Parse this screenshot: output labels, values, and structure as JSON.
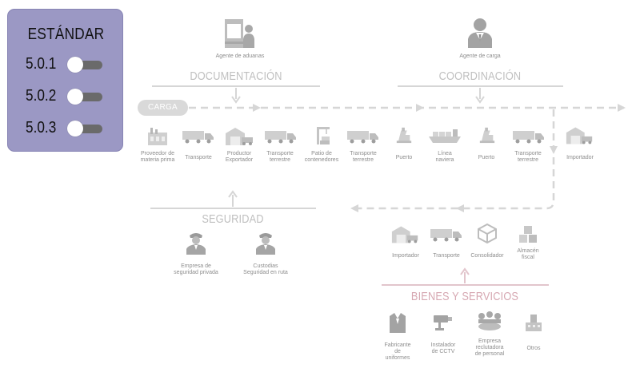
{
  "panel": {
    "title": "ESTÁNDAR",
    "items": [
      {
        "label": "5.0.1",
        "enabled": true
      },
      {
        "label": "5.0.2",
        "enabled": true
      },
      {
        "label": "5.0.3",
        "enabled": true
      }
    ]
  },
  "top_actors": {
    "customs_agent": "Agente de aduanas",
    "cargo_agent": "Agente de carga"
  },
  "sections": {
    "documentation": "DOCUMENTACIÓN",
    "coordination": "COORDINACIÓN",
    "security": "SEGURIDAD",
    "goods_services": "BIENES Y SERVICIOS"
  },
  "cargo_label": "CARGA",
  "chain_nodes": [
    {
      "label": "Proveedor de\nmateria prima",
      "icon": "factory-icon"
    },
    {
      "label": "Transporte",
      "icon": "truck-icon"
    },
    {
      "label": "Productor\nExportador",
      "icon": "warehouse-icon"
    },
    {
      "label": "Transporte\nterrestre",
      "icon": "truck-icon"
    },
    {
      "label": "Patio de\ncontenedores",
      "icon": "crane-icon"
    },
    {
      "label": "Transporte\nterrestre",
      "icon": "truck-icon"
    },
    {
      "label": "Puerto",
      "icon": "port-crane-icon"
    },
    {
      "label": "Línea\nnaviera",
      "icon": "ship-icon"
    },
    {
      "label": "Puerto",
      "icon": "port-crane-icon"
    },
    {
      "label": "Transporte\nterrestre",
      "icon": "truck-icon"
    },
    {
      "label": "Importador",
      "icon": "warehouse-icon"
    }
  ],
  "security_nodes": [
    {
      "label": "Empresa de\nseguridad privada",
      "icon": "guard-icon"
    },
    {
      "label": "Custodias\nSeguridad en ruta",
      "icon": "guard-icon"
    }
  ],
  "import_nodes": [
    {
      "label": "Importador",
      "icon": "warehouse-icon"
    },
    {
      "label": "Transporte",
      "icon": "truck-icon"
    },
    {
      "label": "Consolidador",
      "icon": "package-icon"
    },
    {
      "label": "Almacén\nfiscal",
      "icon": "boxes-icon"
    }
  ],
  "service_nodes": [
    {
      "label": "Fabricante\nde\nuniformes",
      "icon": "uniform-icon"
    },
    {
      "label": "Instalador\nde CCTV",
      "icon": "cctv-icon"
    },
    {
      "label": "Empresa\nreclutadora\nde personal",
      "icon": "recruiting-icon"
    },
    {
      "label": "Otros",
      "icon": "building-icon"
    }
  ],
  "colors": {
    "panel": "#9b98c4",
    "line": "#d6d6d6",
    "pink": "#e4c9cf",
    "text": "#8d8d8d"
  }
}
